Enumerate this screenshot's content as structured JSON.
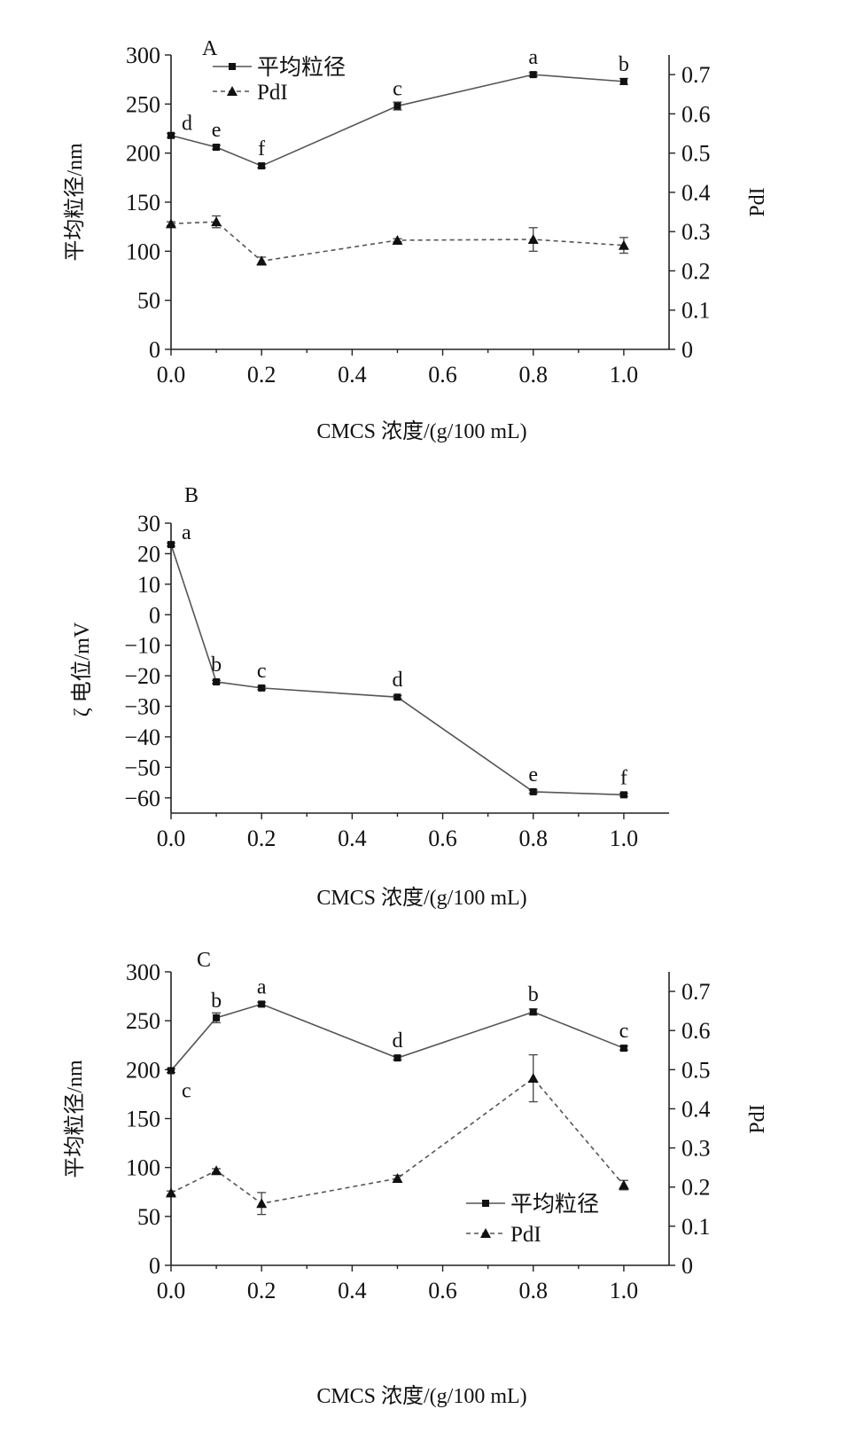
{
  "chart_data": [
    {
      "type": "line",
      "panel_label": "A",
      "x": [
        0.0,
        0.1,
        0.2,
        0.5,
        0.8,
        1.0
      ],
      "xlabel": "CMCS 浓度/(g/100 mL)",
      "xlim": [
        0,
        1.1
      ],
      "xticks": [
        "0.0",
        "0.2",
        "0.4",
        "0.6",
        "0.8",
        "1.0"
      ],
      "ylabel": "平均粒径/nm",
      "ylim": [
        0,
        300
      ],
      "yticks": [
        "0",
        "50",
        "100",
        "150",
        "200",
        "250",
        "300"
      ],
      "y2label": "PdI",
      "y2lim": [
        0,
        0.75
      ],
      "y2ticks": [
        "0",
        "0.1",
        "0.2",
        "0.3",
        "0.4",
        "0.5",
        "0.6",
        "0.7"
      ],
      "legend_position": "top-left",
      "series": [
        {
          "name": "平均粒径",
          "axis": "left",
          "marker": "square",
          "line": "solid",
          "values": [
            218,
            206,
            187,
            248,
            280,
            273
          ],
          "errors": [
            2,
            2,
            2,
            4,
            2,
            3
          ],
          "labels": [
            "d",
            "e",
            "f",
            "c",
            "a",
            "b"
          ]
        },
        {
          "name": "PdI",
          "axis": "right",
          "marker": "triangle",
          "line": "dashed",
          "values": [
            0.32,
            0.325,
            0.225,
            0.278,
            0.28,
            0.265
          ],
          "errors": [
            0.005,
            0.015,
            0.01,
            0.004,
            0.03,
            0.02
          ]
        }
      ]
    },
    {
      "type": "line",
      "panel_label": "B",
      "x": [
        0.0,
        0.1,
        0.2,
        0.5,
        0.8,
        1.0
      ],
      "xlabel": "CMCS 浓度/(g/100 mL)",
      "xlim": [
        0,
        1.1
      ],
      "xticks": [
        "0.0",
        "0.2",
        "0.4",
        "0.6",
        "0.8",
        "1.0"
      ],
      "ylabel": "ζ 电位/mV",
      "ylim": [
        -65,
        30
      ],
      "yticks": [
        "30",
        "20",
        "10",
        "0",
        "−10",
        "−20",
        "−30",
        "−40",
        "−50",
        "−60"
      ],
      "series": [
        {
          "axis": "left",
          "marker": "square",
          "line": "solid",
          "values": [
            23,
            -22,
            -24,
            -27,
            -58,
            -59
          ],
          "errors": [
            0.5,
            0.5,
            0.5,
            0.5,
            0.5,
            0.5
          ],
          "labels": [
            "a",
            "b",
            "c",
            "d",
            "e",
            "f"
          ]
        }
      ]
    },
    {
      "type": "line",
      "panel_label": "C",
      "x": [
        0.0,
        0.1,
        0.2,
        0.5,
        0.8,
        1.0
      ],
      "xlabel": "CMCS 浓度/(g/100 mL)",
      "xlim": [
        0,
        1.1
      ],
      "xticks": [
        "0.0",
        "0.2",
        "0.4",
        "0.6",
        "0.8",
        "1.0"
      ],
      "ylabel": "平均粒径/nm",
      "ylim": [
        0,
        300
      ],
      "yticks": [
        "0",
        "50",
        "100",
        "150",
        "200",
        "250",
        "300"
      ],
      "y2label": "PdI",
      "y2lim": [
        0,
        0.75
      ],
      "y2ticks": [
        "0",
        "0.1",
        "0.2",
        "0.3",
        "0.4",
        "0.5",
        "0.6",
        "0.7"
      ],
      "legend_position": "bottom-right",
      "series": [
        {
          "name": "平均粒径",
          "axis": "left",
          "marker": "square",
          "line": "solid",
          "values": [
            199,
            253,
            267,
            212,
            259,
            222
          ],
          "errors": [
            2,
            5,
            2,
            2,
            3,
            2
          ],
          "labels": [
            "c",
            "b",
            "a",
            "d",
            "b",
            "c"
          ]
        },
        {
          "name": "PdI",
          "axis": "right",
          "marker": "triangle",
          "line": "dashed",
          "values": [
            0.185,
            0.242,
            0.158,
            0.222,
            0.478,
            0.205
          ],
          "errors": [
            0.005,
            0.005,
            0.028,
            0.008,
            0.06,
            0.012
          ]
        }
      ]
    }
  ]
}
